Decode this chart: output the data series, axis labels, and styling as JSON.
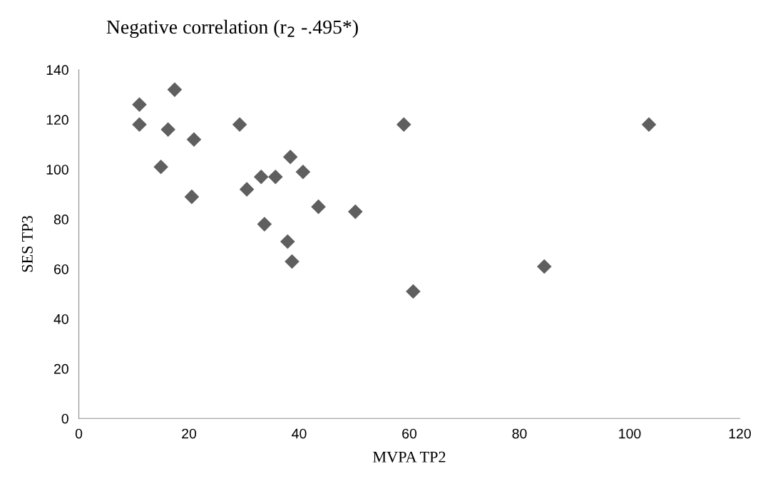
{
  "chart_data": {
    "type": "scatter",
    "title": "Negative correlation (r$_{2}$ -.495*)",
    "xlabel": "MVPA TP2",
    "ylabel": "SES TP3",
    "series": [
      {
        "color": "#5f5f5f",
        "x": [
          11.0,
          11.0,
          17.4,
          16.2,
          20.9,
          14.9,
          20.5,
          29.2,
          30.5,
          33.1,
          35.7,
          38.4,
          40.7,
          33.7,
          37.9,
          38.7,
          43.5,
          50.2,
          59.0,
          103.5,
          60.7,
          84.5
        ],
        "values": [
          126,
          118,
          132,
          116,
          112,
          101,
          89,
          118,
          92,
          97,
          97,
          105,
          99,
          78,
          71,
          63,
          85,
          83,
          118,
          118,
          51,
          61
        ]
      }
    ],
    "xlim": [
      0,
      120
    ],
    "xticks": [
      0,
      20,
      40,
      60,
      80,
      100,
      120
    ],
    "ylim": [
      0,
      140
    ],
    "yticks": [
      0,
      20,
      40,
      60,
      80,
      100,
      120,
      140
    ],
    "marker": "diamond",
    "grid": false,
    "legend": false
  }
}
